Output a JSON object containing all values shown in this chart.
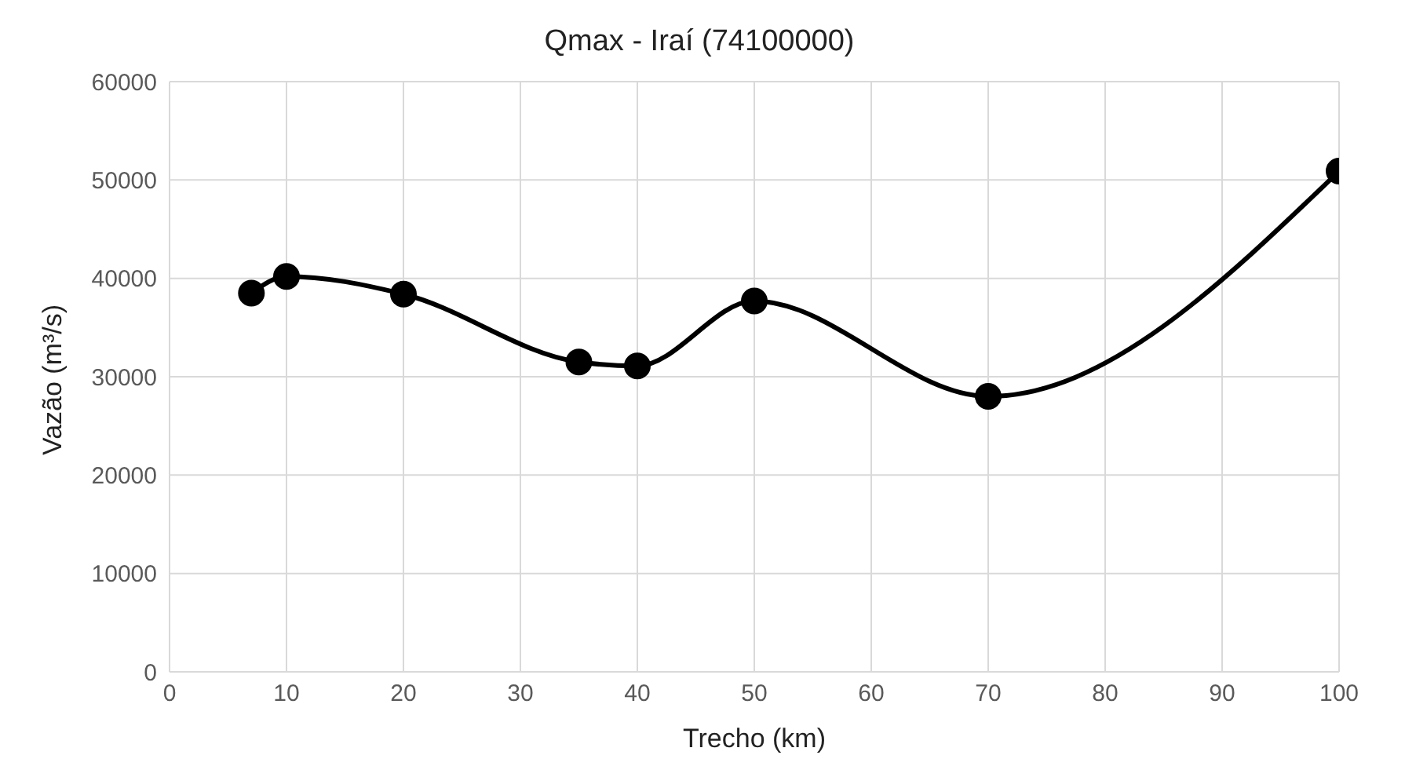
{
  "chart_data": {
    "type": "line",
    "title": "Qmax - Iraí (74100000)",
    "xlabel": "Trecho (km)",
    "ylabel": "Vazão (m³/s)",
    "x": [
      7,
      10,
      20,
      35,
      40,
      50,
      70,
      100
    ],
    "series": [
      {
        "color": "#000000",
        "values": [
          38500,
          40200,
          38400,
          31500,
          31100,
          37700,
          28000,
          50900
        ]
      }
    ],
    "xlim": [
      0,
      100
    ],
    "xticks": [
      0,
      10,
      20,
      30,
      40,
      50,
      60,
      70,
      80,
      90,
      100
    ],
    "ylim": [
      0,
      60000
    ],
    "yticks": [
      0,
      10000,
      20000,
      30000,
      40000,
      50000,
      60000
    ],
    "grid": true,
    "marker": "circle",
    "line_style": "solid"
  }
}
